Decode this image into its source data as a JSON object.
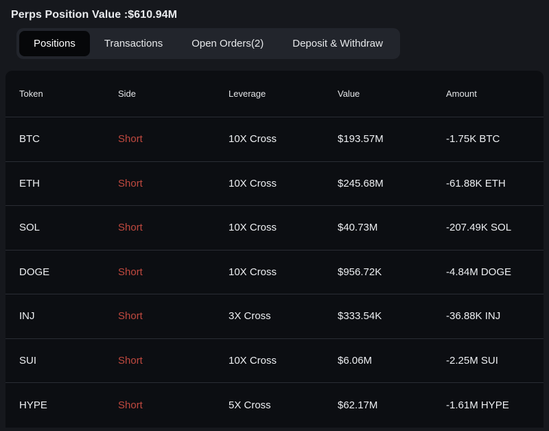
{
  "header": {
    "title": "Perps Position Value :$610.94M"
  },
  "tabs": [
    {
      "label": "Positions",
      "active": true
    },
    {
      "label": "Transactions",
      "active": false
    },
    {
      "label": "Open Orders(2)",
      "active": false
    },
    {
      "label": "Deposit & Withdraw",
      "active": false
    }
  ],
  "table": {
    "columns": [
      "Token",
      "Side",
      "Leverage",
      "Value",
      "Amount"
    ],
    "rows": [
      {
        "token": "BTC",
        "side": "Short",
        "leverage": "10X Cross",
        "value": "$193.57M",
        "amount": "-1.75K BTC"
      },
      {
        "token": "ETH",
        "side": "Short",
        "leverage": "10X Cross",
        "value": "$245.68M",
        "amount": "-61.88K ETH"
      },
      {
        "token": "SOL",
        "side": "Short",
        "leverage": "10X Cross",
        "value": "$40.73M",
        "amount": "-207.49K SOL"
      },
      {
        "token": "DOGE",
        "side": "Short",
        "leverage": "10X Cross",
        "value": "$956.72K",
        "amount": "-4.84M DOGE"
      },
      {
        "token": "INJ",
        "side": "Short",
        "leverage": "3X Cross",
        "value": "$333.54K",
        "amount": "-36.88K INJ"
      },
      {
        "token": "SUI",
        "side": "Short",
        "leverage": "10X Cross",
        "value": "$6.06M",
        "amount": "-2.25M SUI"
      },
      {
        "token": "HYPE",
        "side": "Short",
        "leverage": "5X Cross",
        "value": "$62.17M",
        "amount": "-1.61M HYPE"
      }
    ]
  },
  "colors": {
    "short_red": "#c0493f",
    "page_background": "#16181d",
    "panel_background": "#0c0e12",
    "tab_bar_background": "#22252c",
    "active_tab_background": "#060709"
  }
}
